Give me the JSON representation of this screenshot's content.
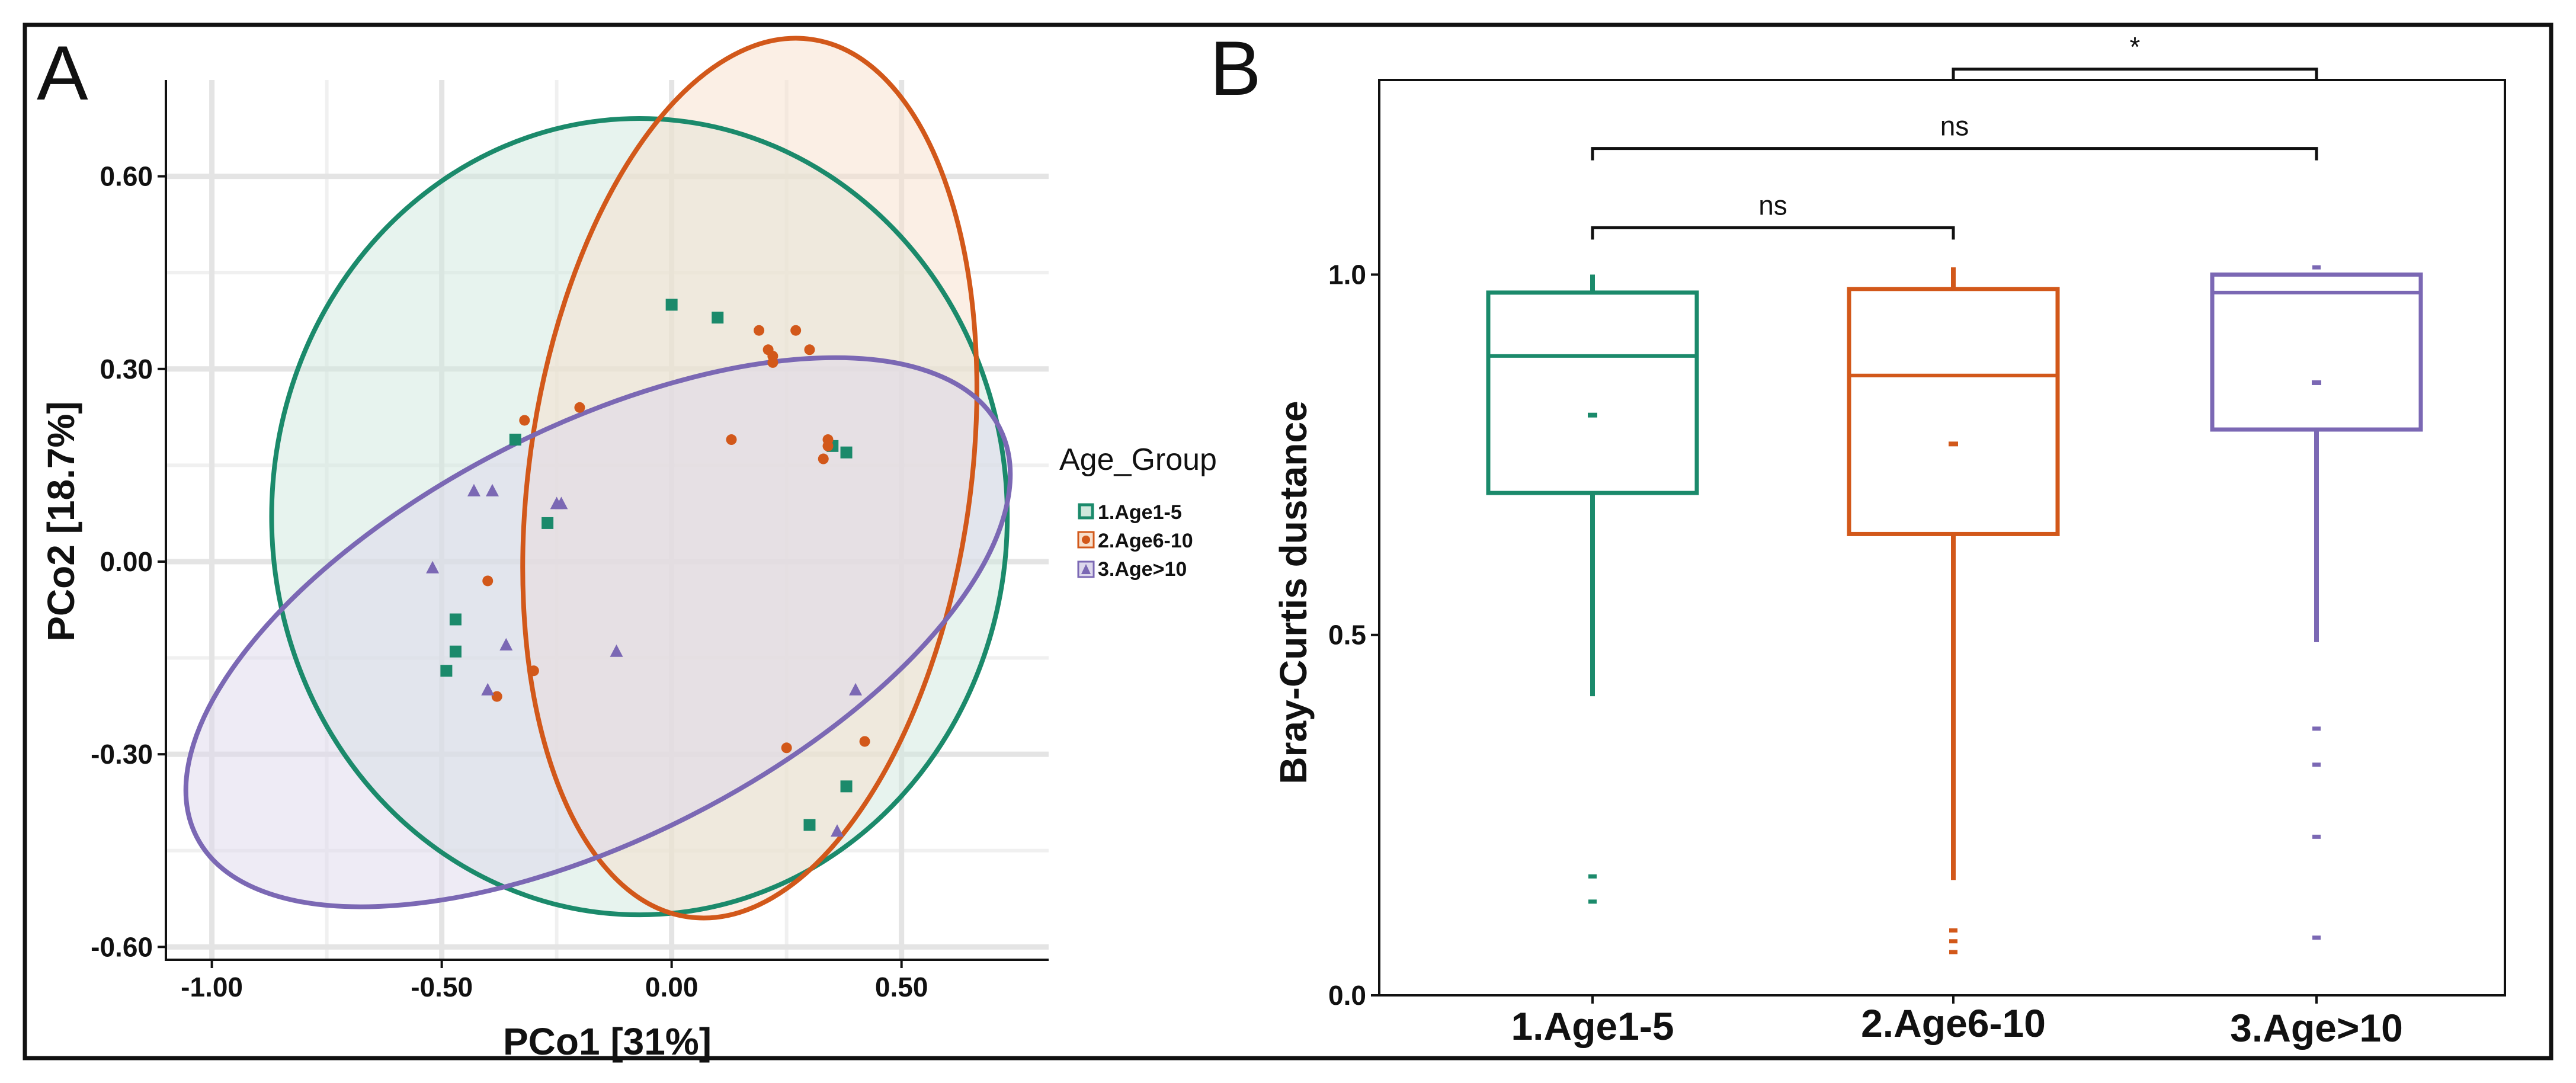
{
  "panels": {
    "a_letter": "A",
    "b_letter": "B"
  },
  "chart_data": [
    {
      "panel": "A",
      "type": "scatter",
      "title": "",
      "xlabel": "PCo1 [31%]",
      "ylabel": "PCo2 [18.7%]",
      "xlim": [
        -1.1,
        0.82
      ],
      "ylim": [
        -0.62,
        0.75
      ],
      "xticks": [
        -1.0,
        -0.5,
        0.0,
        0.5
      ],
      "xtick_labels": [
        "-1.00",
        "-0.50",
        "0.00",
        "0.50"
      ],
      "yticks": [
        -0.6,
        -0.3,
        0.0,
        0.3,
        0.6
      ],
      "ytick_labels": [
        "-0.60",
        "-0.30",
        "0.00",
        "0.30",
        "0.60"
      ],
      "grid": true,
      "legend": {
        "title": "Age_Group",
        "placement": "right",
        "items": [
          "1.Age1-5",
          "2.Age6-10",
          "3.Age>10"
        ]
      },
      "series": [
        {
          "name": "1.Age1-5",
          "marker": "square",
          "color": "#1b8a6b",
          "fill": "#cfe8dd",
          "points": [
            [
              -0.49,
              -0.17
            ],
            [
              -0.47,
              -0.14
            ],
            [
              -0.47,
              -0.09
            ],
            [
              -0.34,
              0.19
            ],
            [
              -0.27,
              0.06
            ],
            [
              0.0,
              0.4
            ],
            [
              0.1,
              0.38
            ],
            [
              0.35,
              0.18
            ],
            [
              0.38,
              0.17
            ],
            [
              0.38,
              -0.35
            ],
            [
              0.3,
              -0.41
            ]
          ],
          "ellipse": {
            "cx": -0.07,
            "cy": 0.07,
            "rx": 0.8,
            "ry": 0.62,
            "angle_deg": 0
          }
        },
        {
          "name": "2.Age6-10",
          "marker": "circle",
          "color": "#d2581a",
          "fill": "#f7dfcc",
          "points": [
            [
              -0.32,
              0.22
            ],
            [
              -0.2,
              0.24
            ],
            [
              -0.4,
              -0.03
            ],
            [
              -0.3,
              -0.17
            ],
            [
              -0.38,
              -0.21
            ],
            [
              0.13,
              0.19
            ],
            [
              0.19,
              0.36
            ],
            [
              0.21,
              0.33
            ],
            [
              0.22,
              0.32
            ],
            [
              0.22,
              0.31
            ],
            [
              0.27,
              0.36
            ],
            [
              0.3,
              0.33
            ],
            [
              0.34,
              0.19
            ],
            [
              0.34,
              0.18
            ],
            [
              0.33,
              0.16
            ],
            [
              0.25,
              -0.29
            ],
            [
              0.42,
              -0.28
            ]
          ],
          "ellipse": {
            "cx": 0.17,
            "cy": 0.13,
            "rx": 0.48,
            "ry": 0.69,
            "angle_deg": -8
          }
        },
        {
          "name": "3.Age>10",
          "marker": "triangle",
          "color": "#7b68b4",
          "fill": "#ddd8ec",
          "points": [
            [
              -0.52,
              -0.01
            ],
            [
              -0.43,
              0.11
            ],
            [
              -0.39,
              0.11
            ],
            [
              -0.36,
              -0.13
            ],
            [
              -0.4,
              -0.2
            ],
            [
              -0.25,
              0.09
            ],
            [
              -0.24,
              0.09
            ],
            [
              -0.12,
              -0.14
            ],
            [
              0.4,
              -0.2
            ],
            [
              0.36,
              -0.42
            ]
          ],
          "ellipse": {
            "cx": -0.16,
            "cy": -0.11,
            "rx": 0.98,
            "ry": 0.32,
            "angle_deg": 27
          }
        }
      ]
    },
    {
      "panel": "B",
      "type": "box",
      "title": "",
      "xlabel": "",
      "ylabel": "Bray-Curtis dustance",
      "categories": [
        "1.Age1-5",
        "2.Age6-10",
        "3.Age>10"
      ],
      "ylim": [
        0.0,
        1.27
      ],
      "yticks": [
        0.0,
        0.5,
        1.0
      ],
      "ytick_labels": [
        "0.0",
        "0.5",
        "1.0"
      ],
      "boxes": [
        {
          "name": "1.Age1-5",
          "color": "#1b8a6b",
          "q1": 0.697,
          "median": 0.887,
          "q3": 0.975,
          "whisker_low": 0.415,
          "whisker_high": 1.0,
          "mean": 0.805,
          "outliers": [
            0.165,
            0.13
          ]
        },
        {
          "name": "2.Age6-10",
          "color": "#d2581a",
          "q1": 0.64,
          "median": 0.86,
          "q3": 0.98,
          "whisker_low": 0.16,
          "whisker_high": 1.01,
          "mean": 0.765,
          "outliers": [
            0.09,
            0.075,
            0.06
          ]
        },
        {
          "name": "3.Age>10",
          "color": "#7b68b4",
          "q1": 0.785,
          "median": 0.975,
          "q3": 1.0,
          "whisker_low": 0.49,
          "whisker_high": 1.0,
          "mean": 0.85,
          "outliers": [
            1.01,
            0.37,
            0.32,
            0.22,
            0.08
          ]
        }
      ],
      "comparisons": [
        {
          "groups": [
            "1.Age1-5",
            "2.Age6-10"
          ],
          "label": "ns",
          "y": 1.065
        },
        {
          "groups": [
            "1.Age1-5",
            "3.Age>10"
          ],
          "label": "ns",
          "y": 1.175
        },
        {
          "groups": [
            "2.Age6-10",
            "3.Age>10"
          ],
          "label": "*",
          "y": 1.285
        }
      ]
    }
  ]
}
